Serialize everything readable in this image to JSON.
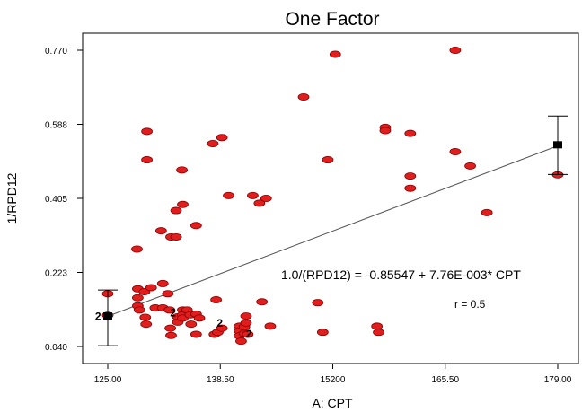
{
  "chart_data": {
    "type": "scatter",
    "title": "One Factor",
    "xlabel": "A: CPT",
    "ylabel": "1/RPD12",
    "xlim": [
      125.0,
      179.0
    ],
    "ylim": [
      0.04,
      0.77
    ],
    "x_ticks": [
      "125.00",
      "138.50",
      "15200",
      "165.50",
      "179.00"
    ],
    "y_ticks": [
      "0.040",
      "0.223",
      "0.405",
      "0.588",
      "0.770"
    ],
    "grid": false,
    "equation": "1.0/(RPD12) = -0.85547 + 7.76E-003* CPT",
    "r_label": "r = 0.5",
    "fit_line": {
      "x": [
        125.0,
        179.0
      ],
      "y": [
        0.1145,
        0.5344
      ]
    },
    "end_means": [
      {
        "x": 125.0,
        "y": 0.115,
        "ci": [
          0.042,
          0.179
        ]
      },
      {
        "x": 179.0,
        "y": 0.537,
        "ci": [
          0.464,
          0.608
        ]
      }
    ],
    "count_labels": [
      {
        "x": 124.2,
        "y": 0.114,
        "text": "2"
      },
      {
        "x": 133.2,
        "y": 0.123,
        "text": "2"
      },
      {
        "x": 138.8,
        "y": 0.098,
        "text": "2"
      },
      {
        "x": 142.3,
        "y": 0.071,
        "text": "2"
      }
    ],
    "points": [
      [
        125.0,
        0.17
      ],
      [
        125.0,
        0.117
      ],
      [
        128.5,
        0.28
      ],
      [
        128.6,
        0.182
      ],
      [
        128.6,
        0.16
      ],
      [
        128.6,
        0.14
      ],
      [
        128.8,
        0.13
      ],
      [
        129.4,
        0.175
      ],
      [
        129.5,
        0.112
      ],
      [
        129.6,
        0.095
      ],
      [
        129.7,
        0.57
      ],
      [
        129.7,
        0.5
      ],
      [
        130.2,
        0.185
      ],
      [
        130.7,
        0.135
      ],
      [
        131.4,
        0.325
      ],
      [
        131.6,
        0.195
      ],
      [
        131.6,
        0.135
      ],
      [
        132.2,
        0.17
      ],
      [
        132.4,
        0.13
      ],
      [
        132.5,
        0.085
      ],
      [
        132.6,
        0.31
      ],
      [
        132.6,
        0.067
      ],
      [
        133.2,
        0.375
      ],
      [
        133.2,
        0.31
      ],
      [
        133.4,
        0.113
      ],
      [
        133.4,
        0.1
      ],
      [
        133.9,
        0.475
      ],
      [
        134.0,
        0.39
      ],
      [
        134.0,
        0.13
      ],
      [
        134.0,
        0.118
      ],
      [
        134.0,
        0.11
      ],
      [
        134.5,
        0.13
      ],
      [
        134.9,
        0.118
      ],
      [
        135.0,
        0.095
      ],
      [
        135.6,
        0.338
      ],
      [
        135.6,
        0.07
      ],
      [
        135.6,
        0.12
      ],
      [
        136.0,
        0.11
      ],
      [
        137.6,
        0.54
      ],
      [
        137.8,
        0.07
      ],
      [
        138.0,
        0.155
      ],
      [
        138.2,
        0.075
      ],
      [
        138.7,
        0.555
      ],
      [
        138.7,
        0.085
      ],
      [
        139.5,
        0.412
      ],
      [
        140.8,
        0.09
      ],
      [
        140.8,
        0.078
      ],
      [
        140.8,
        0.066
      ],
      [
        141.0,
        0.053
      ],
      [
        141.4,
        0.088
      ],
      [
        141.4,
        0.072
      ],
      [
        141.6,
        0.115
      ],
      [
        141.6,
        0.098
      ],
      [
        141.8,
        0.07
      ],
      [
        142.4,
        0.412
      ],
      [
        143.2,
        0.393
      ],
      [
        143.5,
        0.15
      ],
      [
        144.0,
        0.405
      ],
      [
        144.5,
        0.09
      ],
      [
        148.5,
        0.655
      ],
      [
        150.2,
        0.148
      ],
      [
        150.8,
        0.075
      ],
      [
        151.4,
        0.5
      ],
      [
        152.3,
        0.76
      ],
      [
        157.3,
        0.09
      ],
      [
        157.5,
        0.075
      ],
      [
        158.3,
        0.58
      ],
      [
        158.3,
        0.572
      ],
      [
        161.3,
        0.565
      ],
      [
        161.3,
        0.46
      ],
      [
        161.3,
        0.43
      ],
      [
        166.7,
        0.77
      ],
      [
        166.7,
        0.52
      ],
      [
        168.5,
        0.485
      ],
      [
        170.5,
        0.37
      ],
      [
        179.0,
        0.463
      ]
    ]
  }
}
